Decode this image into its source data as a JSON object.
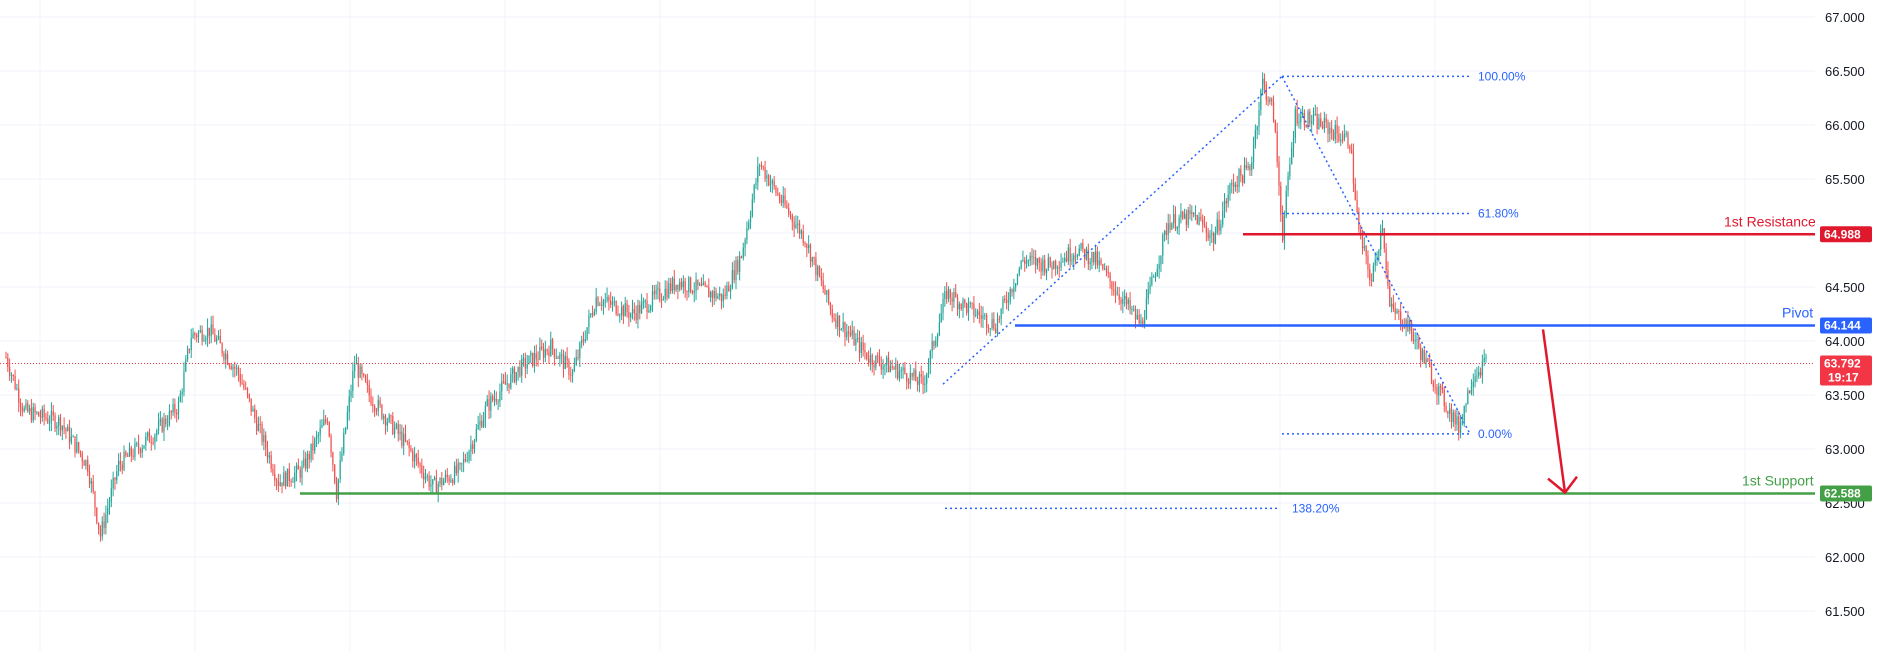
{
  "chart_data": {
    "type": "candlestick",
    "y_axis": {
      "ylim": [
        61.2,
        67.0
      ],
      "ticks": [
        "61.500",
        "62.000",
        "62.500",
        "63.000",
        "63.500",
        "64.000",
        "64.500",
        "65.000",
        "65.500",
        "66.000",
        "66.500",
        "67.000"
      ]
    },
    "grid": true,
    "colors": {
      "up": "#26a69a",
      "down": "#ef5350",
      "grid": "#f0f3fa",
      "axis_text": "#131722"
    },
    "series_waypoints": [
      {
        "t": 0,
        "v": 63.85
      },
      {
        "t": 10,
        "v": 63.35
      },
      {
        "t": 30,
        "v": 63.25
      },
      {
        "t": 45,
        "v": 62.85
      },
      {
        "t": 52,
        "v": 62.2
      },
      {
        "t": 62,
        "v": 62.85
      },
      {
        "t": 82,
        "v": 63.15
      },
      {
        "t": 95,
        "v": 63.4
      },
      {
        "t": 102,
        "v": 64.05
      },
      {
        "t": 112,
        "v": 64.1
      },
      {
        "t": 128,
        "v": 63.7
      },
      {
        "t": 150,
        "v": 62.7
      },
      {
        "t": 163,
        "v": 62.8
      },
      {
        "t": 177,
        "v": 63.3
      },
      {
        "t": 182,
        "v": 62.6
      },
      {
        "t": 192,
        "v": 63.8
      },
      {
        "t": 200,
        "v": 63.5
      },
      {
        "t": 220,
        "v": 63.05
      },
      {
        "t": 235,
        "v": 62.65
      },
      {
        "t": 250,
        "v": 62.8
      },
      {
        "t": 265,
        "v": 63.4
      },
      {
        "t": 283,
        "v": 63.75
      },
      {
        "t": 300,
        "v": 63.95
      },
      {
        "t": 312,
        "v": 63.7
      },
      {
        "t": 325,
        "v": 64.4
      },
      {
        "t": 345,
        "v": 64.25
      },
      {
        "t": 370,
        "v": 64.55
      },
      {
        "t": 395,
        "v": 64.4
      },
      {
        "t": 405,
        "v": 64.8
      },
      {
        "t": 415,
        "v": 65.65
      },
      {
        "t": 425,
        "v": 65.35
      },
      {
        "t": 440,
        "v": 64.95
      },
      {
        "t": 455,
        "v": 64.25
      },
      {
        "t": 475,
        "v": 63.85
      },
      {
        "t": 495,
        "v": 63.7
      },
      {
        "t": 505,
        "v": 63.6
      },
      {
        "t": 518,
        "v": 64.45
      },
      {
        "t": 530,
        "v": 64.3
      },
      {
        "t": 545,
        "v": 64.15
      },
      {
        "t": 560,
        "v": 64.75
      },
      {
        "t": 575,
        "v": 64.7
      },
      {
        "t": 590,
        "v": 64.85
      },
      {
        "t": 600,
        "v": 64.75
      },
      {
        "t": 612,
        "v": 64.45
      },
      {
        "t": 625,
        "v": 64.15
      },
      {
        "t": 640,
        "v": 65.1
      },
      {
        "t": 655,
        "v": 65.15
      },
      {
        "t": 665,
        "v": 64.95
      },
      {
        "t": 675,
        "v": 65.45
      },
      {
        "t": 685,
        "v": 65.6
      },
      {
        "t": 692,
        "v": 66.4
      },
      {
        "t": 698,
        "v": 66.1
      },
      {
        "t": 703,
        "v": 65.0
      },
      {
        "t": 710,
        "v": 66.1
      },
      {
        "t": 725,
        "v": 66.0
      },
      {
        "t": 740,
        "v": 65.85
      },
      {
        "t": 745,
        "v": 65.0
      },
      {
        "t": 752,
        "v": 64.55
      },
      {
        "t": 758,
        "v": 65.1
      },
      {
        "t": 762,
        "v": 64.3
      },
      {
        "t": 772,
        "v": 64.15
      },
      {
        "t": 790,
        "v": 63.5
      },
      {
        "t": 800,
        "v": 63.2
      },
      {
        "t": 808,
        "v": 63.7
      },
      {
        "t": 815,
        "v": 63.8
      }
    ],
    "fibonacci": [
      {
        "label": "100.00%",
        "value": 66.45
      },
      {
        "label": "61.80%",
        "value": 65.18
      },
      {
        "label": "0.00%",
        "value": 63.14
      },
      {
        "label": "138.20%",
        "value": 62.45
      }
    ],
    "levels": [
      {
        "name": "1st Resistance",
        "value": 64.988,
        "tag": "64.988",
        "color": "#e0182d"
      },
      {
        "name": "Pivot",
        "value": 64.144,
        "tag": "64.144",
        "color": "#2962ff"
      },
      {
        "name": "1st Support",
        "value": 62.588,
        "tag": "62.588",
        "color": "#43a047"
      }
    ],
    "current_price": {
      "value": 63.792,
      "tag": "63.792",
      "countdown": "19:17",
      "color": "#f23645"
    },
    "projection": {
      "from": 64.144,
      "to": 62.8,
      "color": "#e0182d"
    }
  }
}
